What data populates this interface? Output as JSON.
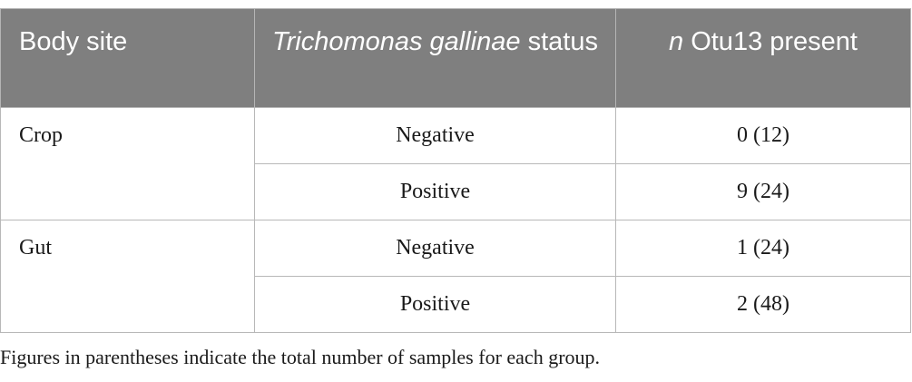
{
  "table": {
    "headers": {
      "body_site": "Body site",
      "status_italic": "Trichomonas gallinae",
      "status_suffix": " status",
      "present_italic": "n",
      "present_suffix": " Otu13 present"
    },
    "groups": [
      {
        "site": "Crop",
        "rows": [
          {
            "status": "Negative",
            "present": "0 (12)"
          },
          {
            "status": "Positive",
            "present": "9 (24)"
          }
        ]
      },
      {
        "site": "Gut",
        "rows": [
          {
            "status": "Negative",
            "present": "1 (24)"
          },
          {
            "status": "Positive",
            "present": "2 (48)"
          }
        ]
      }
    ]
  },
  "footnote": "Figures in parentheses indicate the total number of samples for each group."
}
